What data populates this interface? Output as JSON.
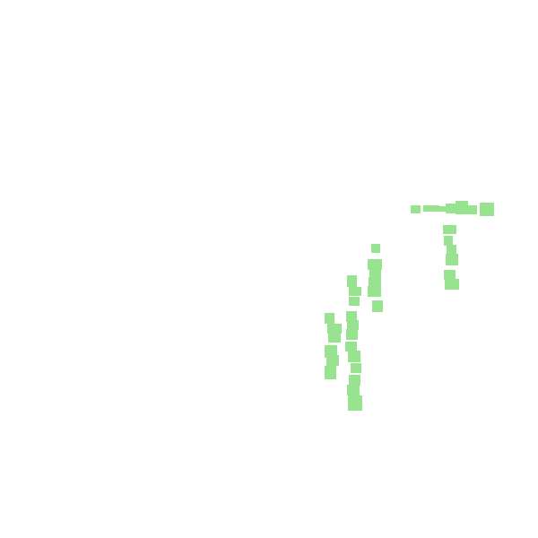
{
  "canvas": {
    "background": "#ffffff",
    "fragment_color": "#98e38f"
  }
}
